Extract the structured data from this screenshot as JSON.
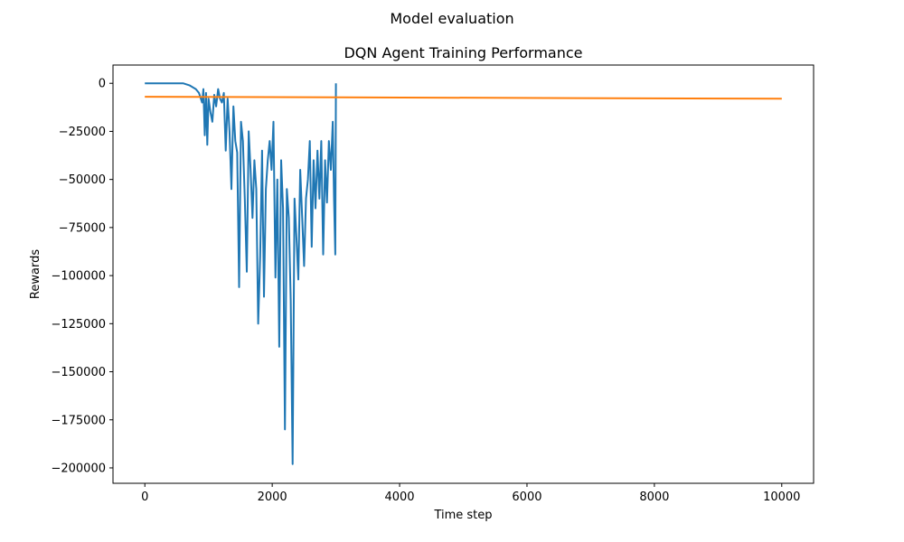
{
  "figure": {
    "suptitle": "Model evaluation"
  },
  "chart_data": {
    "type": "line",
    "title": "DQN Agent Training Performance",
    "xlabel": "Time step",
    "ylabel": "Rewards",
    "xlim": [
      -500,
      10500
    ],
    "ylim": [
      -208000,
      9500
    ],
    "xticks": [
      0,
      2000,
      4000,
      6000,
      8000,
      10000
    ],
    "xtick_labels": [
      "0",
      "2000",
      "4000",
      "6000",
      "8000",
      "10000"
    ],
    "yticks": [
      0,
      -25000,
      -50000,
      -75000,
      -100000,
      -125000,
      -150000,
      -175000,
      -200000
    ],
    "ytick_labels": [
      "0",
      "−25000",
      "−50000",
      "−75000",
      "−100000",
      "−125000",
      "−150000",
      "−175000",
      "−200000"
    ],
    "grid": false,
    "series": [
      {
        "color": "#1f77b4",
        "x": [
          0,
          600,
          700,
          800,
          850,
          900,
          920,
          940,
          960,
          980,
          1000,
          1030,
          1060,
          1090,
          1120,
          1150,
          1180,
          1210,
          1240,
          1270,
          1300,
          1330,
          1360,
          1390,
          1420,
          1450,
          1480,
          1510,
          1540,
          1570,
          1600,
          1630,
          1660,
          1690,
          1720,
          1750,
          1780,
          1810,
          1840,
          1870,
          1900,
          1930,
          1960,
          1990,
          2020,
          2050,
          2080,
          2110,
          2140,
          2170,
          2200,
          2230,
          2260,
          2290,
          2320,
          2350,
          2380,
          2410,
          2440,
          2470,
          2500,
          2530,
          2560,
          2590,
          2620,
          2650,
          2680,
          2710,
          2740,
          2770,
          2800,
          2830,
          2860,
          2890,
          2920,
          2950,
          2970,
          2990,
          3000
        ],
        "y": [
          0,
          0,
          -1000,
          -3000,
          -5000,
          -10000,
          -3000,
          -27000,
          -5000,
          -32000,
          -8000,
          -15000,
          -20000,
          -6000,
          -12000,
          -3000,
          -8000,
          -10000,
          -5000,
          -35000,
          -8000,
          -25000,
          -55000,
          -12000,
          -30000,
          -36000,
          -106000,
          -20000,
          -30000,
          -60000,
          -98000,
          -25000,
          -45000,
          -70000,
          -40000,
          -55000,
          -125000,
          -90000,
          -35000,
          -111000,
          -55000,
          -40000,
          -30000,
          -45000,
          -20000,
          -101000,
          -50000,
          -137000,
          -40000,
          -65000,
          -180000,
          -55000,
          -70000,
          -113000,
          -198000,
          -60000,
          -80000,
          -102000,
          -45000,
          -70000,
          -95000,
          -60000,
          -50000,
          -30000,
          -85000,
          -40000,
          -65000,
          -35000,
          -60000,
          -30000,
          -89000,
          -40000,
          -62000,
          -30000,
          -45000,
          -20000,
          -60000,
          -89000,
          0
        ]
      },
      {
        "color": "#ff7f0e",
        "x": [
          0,
          10000
        ],
        "y": [
          -7000,
          -8000
        ]
      }
    ]
  }
}
